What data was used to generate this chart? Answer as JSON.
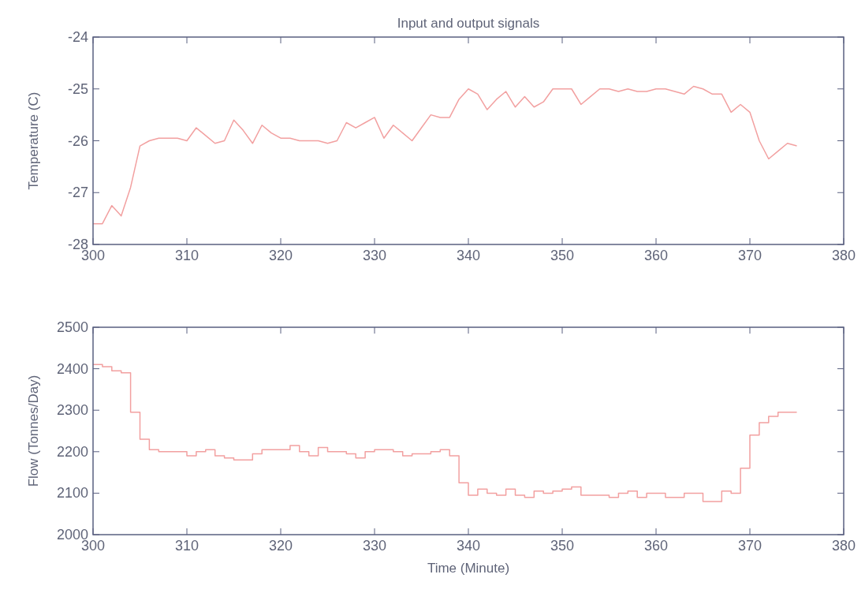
{
  "chart_data": [
    {
      "type": "line",
      "title": "Input and output signals",
      "ylabel": "Temperature (C)",
      "xlim": [
        300,
        380
      ],
      "xticks": [
        300,
        310,
        320,
        330,
        340,
        350,
        360,
        370,
        380
      ],
      "ylim": [
        -28,
        -24
      ],
      "yticks": [
        -28,
        -27,
        -26,
        -25,
        -24
      ],
      "grid": false,
      "x": [
        300,
        301,
        302,
        303,
        304,
        305,
        306,
        307,
        308,
        309,
        310,
        311,
        312,
        313,
        314,
        315,
        316,
        317,
        318,
        319,
        320,
        321,
        322,
        323,
        324,
        325,
        326,
        327,
        328,
        329,
        330,
        331,
        332,
        333,
        334,
        335,
        336,
        337,
        338,
        339,
        340,
        341,
        342,
        343,
        344,
        345,
        346,
        347,
        348,
        349,
        350,
        351,
        352,
        353,
        354,
        355,
        356,
        357,
        358,
        359,
        360,
        361,
        362,
        363,
        364,
        365,
        366,
        367,
        368,
        369,
        370,
        371,
        372,
        373,
        374,
        375
      ],
      "series": [
        {
          "color": "#f2a0a0",
          "values": [
            -27.6,
            -27.6,
            -27.25,
            -27.45,
            -26.9,
            -26.1,
            -26.0,
            -25.95,
            -25.95,
            -25.95,
            -26.0,
            -25.75,
            -25.9,
            -26.05,
            -26.0,
            -25.6,
            -25.8,
            -26.05,
            -25.7,
            -25.85,
            -25.95,
            -25.95,
            -26.0,
            -26.0,
            -26.0,
            -26.05,
            -26.0,
            -25.65,
            -25.75,
            -25.65,
            -25.55,
            -25.95,
            -25.7,
            -25.85,
            -26.0,
            -25.75,
            -25.5,
            -25.55,
            -25.55,
            -25.2,
            -25.0,
            -25.1,
            -25.4,
            -25.2,
            -25.05,
            -25.35,
            -25.15,
            -25.35,
            -25.25,
            -25.0,
            -25.0,
            -25.0,
            -25.3,
            -25.15,
            -25.0,
            -25.0,
            -25.05,
            -25.0,
            -25.05,
            -25.05,
            -25.0,
            -25.0,
            -25.05,
            -25.1,
            -24.95,
            -25.0,
            -25.1,
            -25.1,
            -25.45,
            -25.3,
            -25.45,
            -26.0,
            -26.35,
            -26.2,
            -26.05,
            -26.1
          ]
        }
      ]
    },
    {
      "type": "step",
      "xlabel": "Time (Minute)",
      "ylabel": "Flow (Tonnes/Day)",
      "xlim": [
        300,
        380
      ],
      "xticks": [
        300,
        310,
        320,
        330,
        340,
        350,
        360,
        370,
        380
      ],
      "ylim": [
        2000,
        2500
      ],
      "yticks": [
        2000,
        2100,
        2200,
        2300,
        2400,
        2500
      ],
      "grid": false,
      "x": [
        300,
        301,
        302,
        303,
        304,
        305,
        306,
        307,
        308,
        309,
        310,
        311,
        312,
        313,
        314,
        315,
        316,
        317,
        318,
        319,
        320,
        321,
        322,
        323,
        324,
        325,
        326,
        327,
        328,
        329,
        330,
        331,
        332,
        333,
        334,
        335,
        336,
        337,
        338,
        339,
        340,
        341,
        342,
        343,
        344,
        345,
        346,
        347,
        348,
        349,
        350,
        351,
        352,
        353,
        354,
        355,
        356,
        357,
        358,
        359,
        360,
        361,
        362,
        363,
        364,
        365,
        366,
        367,
        368,
        369,
        370,
        371,
        372,
        373,
        374,
        375
      ],
      "series": [
        {
          "color": "#f2a0a0",
          "values": [
            2410,
            2405,
            2395,
            2390,
            2295,
            2230,
            2205,
            2200,
            2200,
            2200,
            2190,
            2200,
            2205,
            2190,
            2185,
            2180,
            2180,
            2195,
            2205,
            2205,
            2205,
            2215,
            2200,
            2190,
            2210,
            2200,
            2200,
            2195,
            2185,
            2200,
            2205,
            2205,
            2200,
            2190,
            2195,
            2195,
            2200,
            2205,
            2190,
            2125,
            2095,
            2110,
            2100,
            2095,
            2110,
            2095,
            2090,
            2105,
            2100,
            2105,
            2110,
            2115,
            2095,
            2095,
            2095,
            2090,
            2100,
            2105,
            2090,
            2100,
            2100,
            2090,
            2090,
            2100,
            2100,
            2080,
            2080,
            2105,
            2100,
            2160,
            2240,
            2270,
            2285,
            2295,
            2295,
            2295
          ]
        }
      ]
    }
  ]
}
